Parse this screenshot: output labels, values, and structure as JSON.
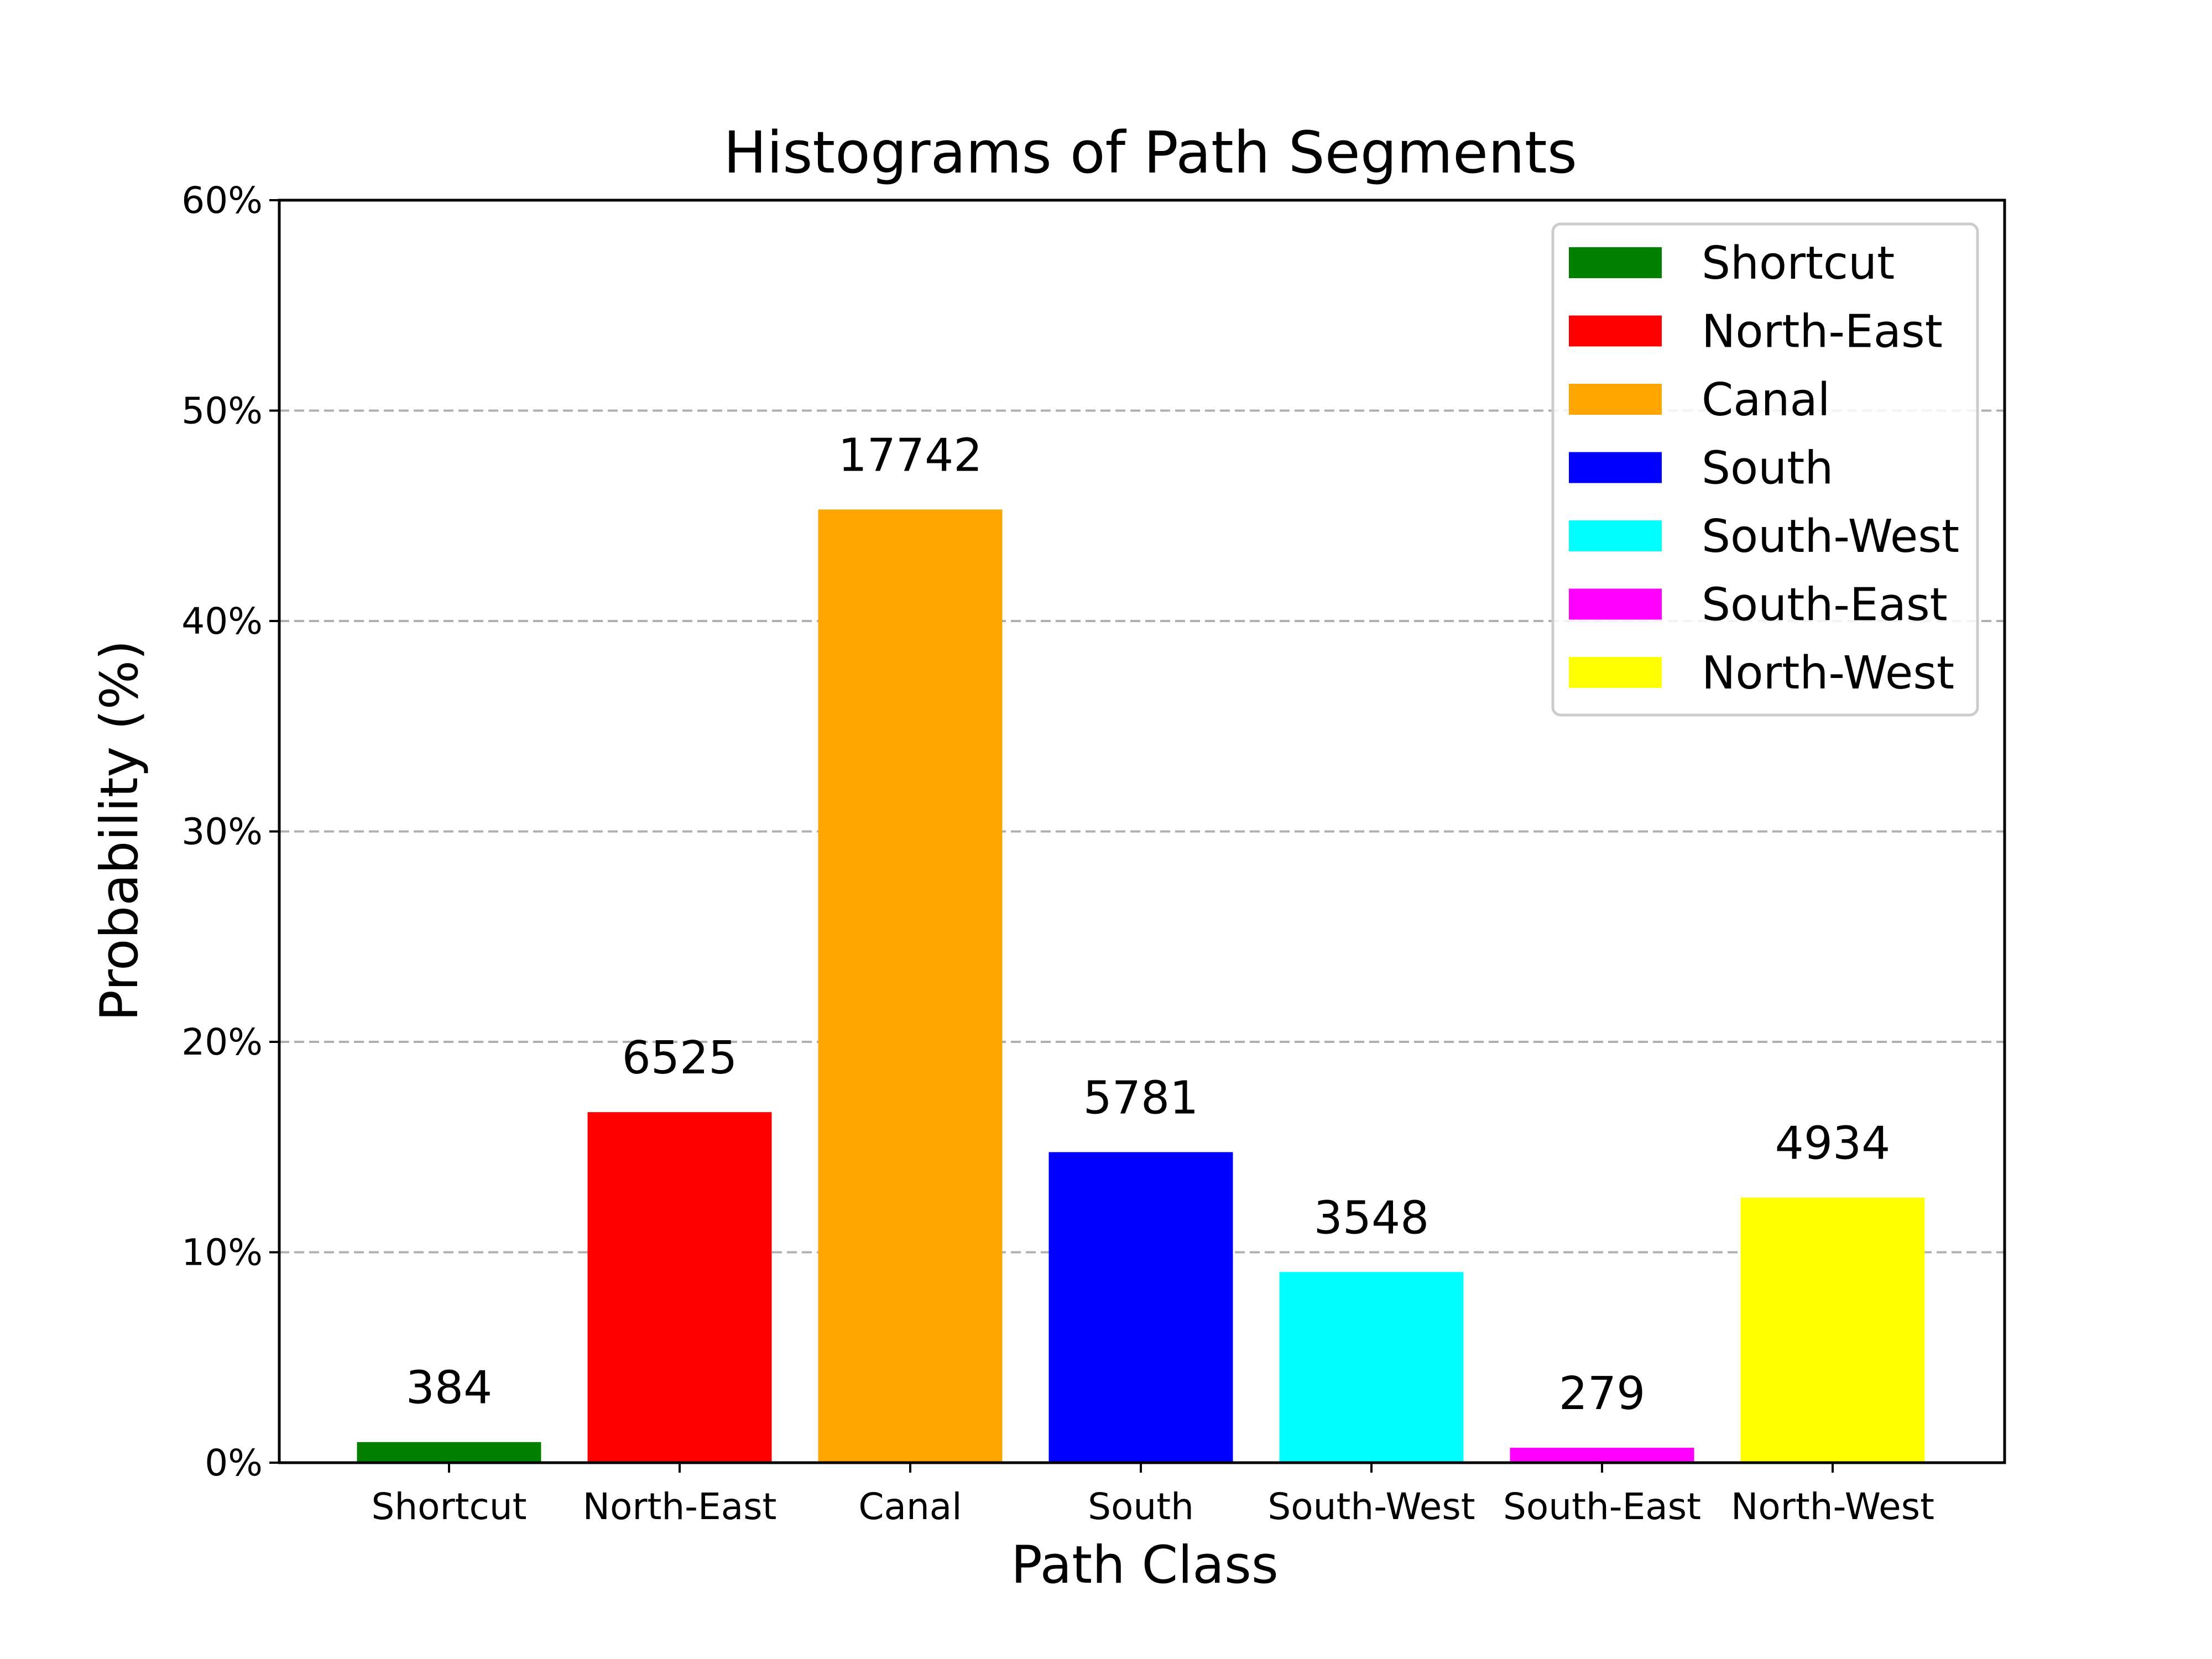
{
  "chart_data": {
    "type": "bar",
    "title": "Histograms of Path Segments",
    "xlabel": "Path Class",
    "ylabel": "Probability (%)",
    "ylim": [
      0,
      60
    ],
    "y_tick_values": [
      0,
      10,
      20,
      30,
      40,
      50,
      60
    ],
    "y_tick_labels": [
      "0%",
      "10%",
      "20%",
      "30%",
      "40%",
      "50%",
      "60%"
    ],
    "grid": "horizontal dashed",
    "legend_position": "top-right",
    "categories": [
      "Shortcut",
      "North-East",
      "Canal",
      "South",
      "South-West",
      "South-East",
      "North-West"
    ],
    "values": [
      0.98,
      16.66,
      45.3,
      14.76,
      9.06,
      0.71,
      12.6
    ],
    "counts": [
      "384",
      "6525",
      "17742",
      "5781",
      "3548",
      "279",
      "4934"
    ],
    "colors": [
      "#008000",
      "#ff0000",
      "#ffa500",
      "#0000ff",
      "#00ffff",
      "#ff00ff",
      "#ffff00"
    ],
    "legend": [
      "Shortcut",
      "North-East",
      "Canal",
      "South",
      "South-West",
      "South-East",
      "North-West"
    ]
  }
}
